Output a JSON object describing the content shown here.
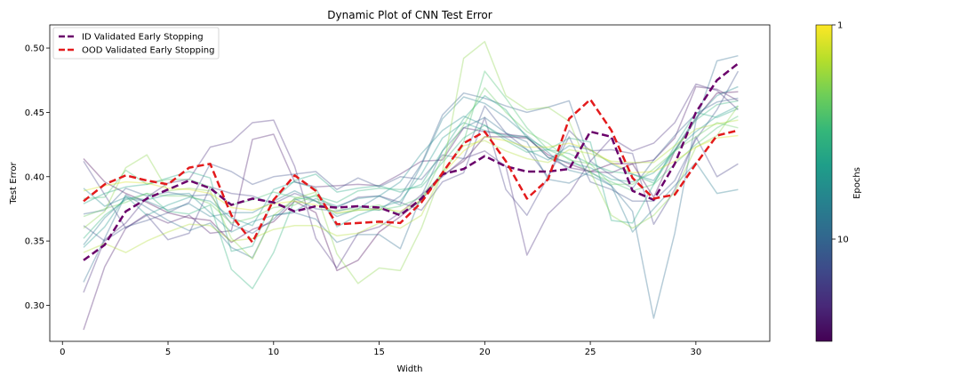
{
  "chart_data": {
    "type": "line",
    "title": "Dynamic Plot of CNN Test Error",
    "xlabel": "Width",
    "ylabel": "Test Error",
    "xlim": [
      -0.6,
      33.5
    ],
    "ylim": [
      0.272,
      0.518
    ],
    "x_ticks": [
      0,
      5,
      10,
      15,
      20,
      25,
      30
    ],
    "y_ticks": [
      0.3,
      0.35,
      0.4,
      0.45,
      0.5
    ],
    "x_tick_labels": [
      "0",
      "5",
      "10",
      "15",
      "20",
      "25",
      "30"
    ],
    "y_tick_labels": [
      "0.30",
      "0.35",
      "0.40",
      "0.45",
      "0.50"
    ],
    "grid": false,
    "legend_position": "top-left",
    "x": [
      1,
      2,
      3,
      4,
      5,
      6,
      7,
      8,
      9,
      10,
      11,
      12,
      13,
      14,
      15,
      16,
      17,
      18,
      19,
      20,
      21,
      22,
      23,
      24,
      25,
      26,
      27,
      28,
      29,
      30,
      31,
      32
    ],
    "series": [
      {
        "name": "ID Validated Early Stopping",
        "color": "#6a006a",
        "style": "dashed",
        "values": [
          0.335,
          0.347,
          0.373,
          0.383,
          0.39,
          0.397,
          0.391,
          0.378,
          0.383,
          0.38,
          0.373,
          0.377,
          0.376,
          0.377,
          0.376,
          0.37,
          0.383,
          0.402,
          0.406,
          0.416,
          0.408,
          0.404,
          0.404,
          0.406,
          0.435,
          0.431,
          0.389,
          0.382,
          0.41,
          0.45,
          0.475,
          0.488
        ]
      },
      {
        "name": "OOD Validated Early Stopping",
        "color": "#e31a1c",
        "style": "dashed",
        "values": [
          0.381,
          0.394,
          0.401,
          0.397,
          0.394,
          0.407,
          0.41,
          0.37,
          0.349,
          0.382,
          0.401,
          0.389,
          0.363,
          0.364,
          0.365,
          0.364,
          0.38,
          0.403,
          0.426,
          0.435,
          0.412,
          0.383,
          0.398,
          0.445,
          0.46,
          0.436,
          0.399,
          0.383,
          0.386,
          0.41,
          0.432,
          0.436
        ]
      }
    ],
    "background_series": [
      {
        "color": "#440154",
        "values": [
          0.414,
          0.396,
          0.387,
          0.38,
          0.372,
          0.368,
          0.366,
          0.349,
          0.359,
          0.365,
          0.381,
          0.372,
          0.327,
          0.335,
          0.357,
          0.369,
          0.382,
          0.401,
          0.412,
          0.431,
          0.431,
          0.43,
          0.417,
          0.41,
          0.404,
          0.41,
          0.41,
          0.384,
          0.42,
          0.445,
          0.465,
          0.466
        ]
      },
      {
        "color": "#481769",
        "values": [
          0.281,
          0.33,
          0.36,
          0.371,
          0.364,
          0.37,
          0.356,
          0.358,
          0.429,
          0.433,
          0.396,
          0.392,
          0.393,
          0.394,
          0.393,
          0.402,
          0.412,
          0.413,
          0.438,
          0.435,
          0.433,
          0.431,
          0.415,
          0.407,
          0.404,
          0.403,
          0.41,
          0.413,
          0.43,
          0.47,
          0.468,
          0.459
        ]
      },
      {
        "color": "#472a7a",
        "values": [
          0.31,
          0.351,
          0.364,
          0.384,
          0.395,
          0.398,
          0.423,
          0.427,
          0.442,
          0.444,
          0.408,
          0.352,
          0.329,
          0.356,
          0.361,
          0.372,
          0.386,
          0.4,
          0.414,
          0.42,
          0.408,
          0.339,
          0.371,
          0.387,
          0.412,
          0.43,
          0.42,
          0.426,
          0.442,
          0.472,
          0.467,
          0.452
        ]
      },
      {
        "color": "#433d84",
        "values": [
          0.412,
          0.386,
          0.36,
          0.37,
          0.351,
          0.356,
          0.392,
          0.387,
          0.385,
          0.379,
          0.387,
          0.381,
          0.376,
          0.384,
          0.385,
          0.38,
          0.374,
          0.396,
          0.403,
          0.446,
          0.39,
          0.37,
          0.4,
          0.436,
          0.42,
          0.421,
          0.418,
          0.363,
          0.39,
          0.431,
          0.4,
          0.41
        ]
      },
      {
        "color": "#3d4e8a",
        "values": [
          0.362,
          0.35,
          0.361,
          0.366,
          0.372,
          0.38,
          0.41,
          0.404,
          0.394,
          0.4,
          0.402,
          0.404,
          0.39,
          0.399,
          0.392,
          0.4,
          0.398,
          0.417,
          0.414,
          0.455,
          0.434,
          0.421,
          0.4,
          0.431,
          0.396,
          0.39,
          0.381,
          0.381,
          0.397,
          0.429,
          0.452,
          0.482
        ]
      },
      {
        "color": "#355e8d",
        "values": [
          0.371,
          0.374,
          0.391,
          0.385,
          0.388,
          0.385,
          0.386,
          0.363,
          0.356,
          0.367,
          0.383,
          0.375,
          0.373,
          0.377,
          0.374,
          0.385,
          0.41,
          0.448,
          0.465,
          0.461,
          0.455,
          0.45,
          0.454,
          0.459,
          0.412,
          0.401,
          0.391,
          0.413,
          0.432,
          0.449,
          0.458,
          0.461
        ]
      },
      {
        "color": "#2e6d8e",
        "values": [
          0.318,
          0.352,
          0.386,
          0.376,
          0.366,
          0.358,
          0.364,
          0.345,
          0.337,
          0.37,
          0.372,
          0.367,
          0.349,
          0.355,
          0.355,
          0.344,
          0.385,
          0.42,
          0.438,
          0.446,
          0.434,
          0.427,
          0.398,
          0.395,
          0.404,
          0.393,
          0.373,
          0.29,
          0.356,
          0.443,
          0.49,
          0.494
        ]
      },
      {
        "color": "#297b8e",
        "values": [
          0.347,
          0.368,
          0.383,
          0.381,
          0.374,
          0.379,
          0.369,
          0.372,
          0.372,
          0.381,
          0.389,
          0.381,
          0.369,
          0.375,
          0.385,
          0.378,
          0.409,
          0.445,
          0.462,
          0.457,
          0.446,
          0.432,
          0.419,
          0.405,
          0.401,
          0.393,
          0.357,
          0.375,
          0.393,
          0.411,
          0.387,
          0.39
        ]
      },
      {
        "color": "#23898e",
        "values": [
          0.391,
          0.377,
          0.384,
          0.382,
          0.386,
          0.387,
          0.372,
          0.357,
          0.365,
          0.37,
          0.373,
          0.383,
          0.377,
          0.383,
          0.385,
          0.396,
          0.418,
          0.436,
          0.447,
          0.44,
          0.43,
          0.421,
          0.413,
          0.424,
          0.421,
          0.41,
          0.402,
          0.397,
          0.421,
          0.446,
          0.463,
          0.47
        ]
      },
      {
        "color": "#1f978b",
        "values": [
          0.345,
          0.361,
          0.385,
          0.37,
          0.378,
          0.384,
          0.381,
          0.368,
          0.362,
          0.39,
          0.396,
          0.391,
          0.361,
          0.37,
          0.376,
          0.381,
          0.402,
          0.43,
          0.442,
          0.436,
          0.432,
          0.431,
          0.415,
          0.411,
          0.407,
          0.398,
          0.396,
          0.403,
          0.42,
          0.435,
          0.447,
          0.455
        ]
      },
      {
        "color": "#21a585",
        "values": [
          0.379,
          0.387,
          0.392,
          0.394,
          0.399,
          0.404,
          0.399,
          0.342,
          0.346,
          0.382,
          0.397,
          0.402,
          0.388,
          0.391,
          0.393,
          0.388,
          0.394,
          0.42,
          0.445,
          0.463,
          0.452,
          0.43,
          0.421,
          0.43,
          0.427,
          0.366,
          0.364,
          0.394,
          0.424,
          0.45,
          0.446,
          0.453
        ]
      },
      {
        "color": "#2eb37c",
        "values": [
          0.352,
          0.37,
          0.382,
          0.387,
          0.373,
          0.371,
          0.378,
          0.328,
          0.313,
          0.341,
          0.382,
          0.385,
          0.38,
          0.389,
          0.391,
          0.39,
          0.392,
          0.411,
          0.43,
          0.44,
          0.428,
          0.419,
          0.421,
          0.418,
          0.41,
          0.404,
          0.402,
          0.395,
          0.42,
          0.444,
          0.456,
          0.459
        ]
      },
      {
        "color": "#46c06f",
        "values": [
          0.383,
          0.384,
          0.405,
          0.394,
          0.398,
          0.398,
          0.392,
          0.378,
          0.382,
          0.388,
          0.384,
          0.381,
          0.371,
          0.374,
          0.374,
          0.377,
          0.384,
          0.403,
          0.427,
          0.482,
          0.461,
          0.438,
          0.421,
          0.414,
          0.403,
          0.396,
          0.389,
          0.394,
          0.41,
          0.425,
          0.438,
          0.447
        ]
      },
      {
        "color": "#65cb5e",
        "values": [
          0.369,
          0.375,
          0.38,
          0.387,
          0.385,
          0.385,
          0.379,
          0.364,
          0.368,
          0.376,
          0.378,
          0.386,
          0.374,
          0.375,
          0.378,
          0.371,
          0.381,
          0.415,
          0.44,
          0.469,
          0.45,
          0.435,
          0.426,
          0.413,
          0.41,
          0.394,
          0.394,
          0.406,
          0.42,
          0.431,
          0.442,
          0.438
        ]
      },
      {
        "color": "#89d548",
        "values": [
          0.36,
          0.373,
          0.407,
          0.417,
          0.389,
          0.391,
          0.389,
          0.352,
          0.336,
          0.37,
          0.383,
          0.388,
          0.34,
          0.317,
          0.329,
          0.327,
          0.36,
          0.404,
          0.492,
          0.505,
          0.463,
          0.452,
          0.454,
          0.443,
          0.404,
          0.37,
          0.36,
          0.37,
          0.388,
          0.423,
          0.432,
          0.455
        ]
      },
      {
        "color": "#b0dd2f",
        "values": [
          0.341,
          0.348,
          0.341,
          0.35,
          0.357,
          0.363,
          0.362,
          0.35,
          0.352,
          0.359,
          0.362,
          0.362,
          0.354,
          0.356,
          0.364,
          0.36,
          0.37,
          0.404,
          0.424,
          0.428,
          0.42,
          0.414,
          0.411,
          0.421,
          0.418,
          0.412,
          0.411,
          0.411,
          0.424,
          0.437,
          0.441,
          0.444
        ]
      },
      {
        "color": "#d8e219",
        "values": [
          0.389,
          0.393,
          0.396,
          0.395,
          0.391,
          0.39,
          0.387,
          0.376,
          0.374,
          0.379,
          0.381,
          0.378,
          0.372,
          0.374,
          0.375,
          0.373,
          0.382,
          0.402,
          0.42,
          0.431,
          0.428,
          0.423,
          0.423,
          0.426,
          0.421,
          0.411,
          0.403,
          0.404,
          0.412,
          0.423,
          0.43,
          0.432
        ]
      }
    ],
    "colorbar": {
      "label": "Epochs",
      "ticks": [
        "1",
        "10"
      ],
      "colors": [
        "#440154",
        "#482878",
        "#3e4989",
        "#31688e",
        "#26828e",
        "#1f9e89",
        "#35b779",
        "#6ece58",
        "#b5de2b",
        "#fde725"
      ]
    }
  }
}
